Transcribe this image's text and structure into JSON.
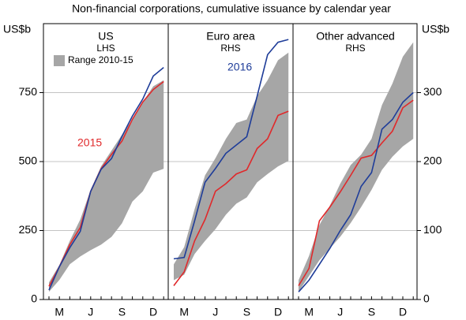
{
  "subtitle": "Non-financial corporations, cumulative issuance by calendar year",
  "y_label": "US$b",
  "y2_label": "US$b",
  "ylim": [
    0,
    1000
  ],
  "yticks": [
    0,
    250,
    500,
    750
  ],
  "y2lim": [
    0,
    400
  ],
  "y2ticks": [
    0,
    100,
    200,
    300
  ],
  "grid": true,
  "chart_data": [
    {
      "type": "line",
      "title": "US",
      "subtitle": "LHS",
      "categories": [
        null,
        "M",
        null,
        null,
        "J",
        null,
        null,
        "S",
        null,
        null,
        "D",
        null
      ],
      "series": [
        {
          "name": "Range 2010-15",
          "kind": "range",
          "color": "#a6a6a6",
          "legend": true,
          "upper": [
            62,
            125,
            213,
            290,
            398,
            483,
            540,
            597,
            653,
            716,
            773,
            795
          ],
          "lower": [
            28,
            71,
            128,
            156,
            179,
            199,
            227,
            276,
            355,
            392,
            460,
            474
          ]
        },
        {
          "name": "2015",
          "color": "#e0292b",
          "values": [
            48,
            119,
            199,
            261,
            392,
            474,
            526,
            574,
            653,
            716,
            761,
            790
          ]
        },
        {
          "color": "#1f3d99",
          "values": [
            34,
            119,
            188,
            247,
            392,
            472,
            511,
            591,
            665,
            727,
            810,
            841
          ]
        }
      ]
    },
    {
      "type": "line",
      "title": "Euro area",
      "subtitle": "RHS",
      "categories": [
        null,
        "M",
        null,
        null,
        "J",
        null,
        null,
        "S",
        null,
        null,
        "D",
        null
      ],
      "series": [
        {
          "kind": "range",
          "color": "#a6a6a6",
          "axis": "y2",
          "upper": [
            51,
            76,
            131,
            180,
            205,
            233,
            256,
            261,
            295,
            318,
            347,
            358
          ],
          "lower": [
            28,
            36,
            66,
            85,
            102,
            123,
            139,
            148,
            170,
            182,
            193,
            201
          ]
        },
        {
          "color": "#e0292b",
          "axis": "y2",
          "values": [
            20,
            40,
            85,
            116,
            157,
            168,
            182,
            188,
            219,
            233,
            267,
            273
          ]
        },
        {
          "name": "2016",
          "color": "#1f3d99",
          "axis": "y2",
          "values": [
            59,
            61,
            114,
            170,
            190,
            212,
            224,
            236,
            295,
            355,
            373,
            377
          ]
        }
      ]
    },
    {
      "type": "line",
      "title": "Other advanced",
      "subtitle": "RHS",
      "categories": [
        null,
        "M",
        null,
        null,
        "J",
        null,
        null,
        "S",
        null,
        null,
        "D",
        null
      ],
      "series": [
        {
          "kind": "range",
          "color": "#a6a6a6",
          "axis": "y2",
          "upper": [
            28,
            63,
            108,
            136,
            168,
            195,
            210,
            233,
            282,
            313,
            352,
            373
          ],
          "lower": [
            11,
            34,
            57,
            74,
            91,
            111,
            134,
            159,
            188,
            207,
            222,
            233
          ]
        },
        {
          "color": "#e0292b",
          "axis": "y2",
          "values": [
            20,
            45,
            114,
            134,
            156,
            180,
            205,
            209,
            227,
            244,
            278,
            289
          ]
        },
        {
          "color": "#1f3d99",
          "axis": "y2",
          "values": [
            11,
            28,
            51,
            74,
            100,
            123,
            164,
            184,
            247,
            261,
            286,
            300
          ]
        }
      ]
    }
  ]
}
